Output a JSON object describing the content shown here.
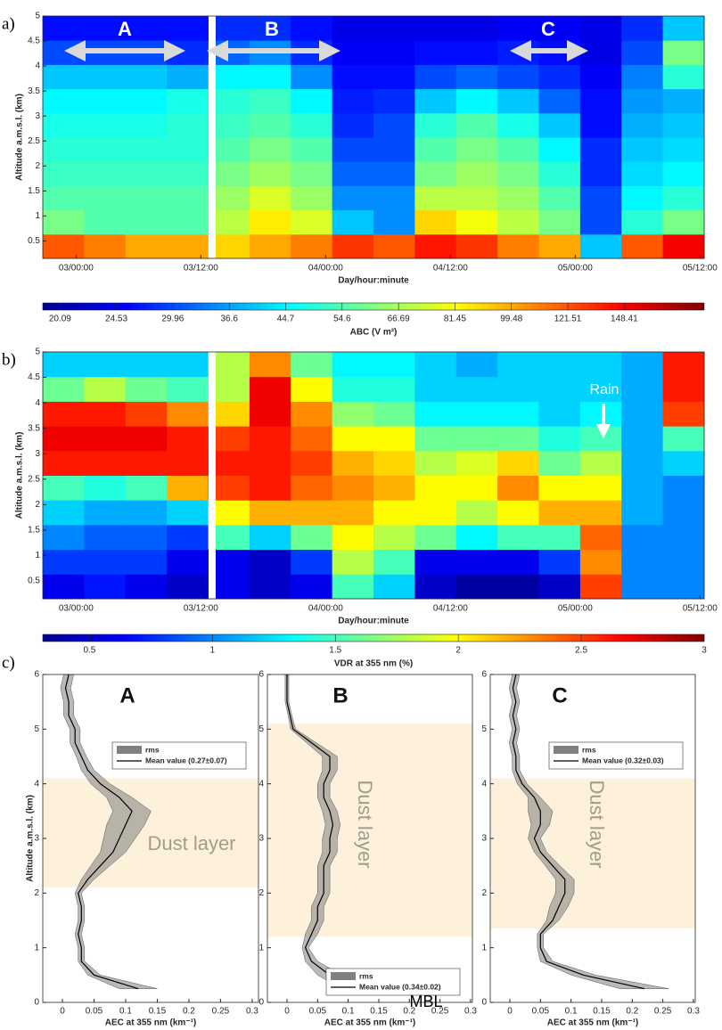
{
  "chart_data": [
    {
      "type": "heatmap",
      "panel_label": "a)",
      "xlabel": "Day/hour:minute",
      "ylabel": "Altitude a.m.s.l. (km)",
      "xlim": [
        -3.2,
        60.4
      ],
      "xticks": [
        {
          "value": 0,
          "label": "03/00:00"
        },
        {
          "value": 12,
          "label": "03/12:00"
        },
        {
          "value": 24,
          "label": "04/00:00"
        },
        {
          "value": 36,
          "label": "04/12:00"
        },
        {
          "value": 48,
          "label": "05/00:00"
        },
        {
          "value": 60,
          "label": "05/12:00"
        }
      ],
      "ylim": [
        0.15,
        5
      ],
      "yticks": [
        0.5,
        1,
        1.5,
        2,
        2.5,
        3,
        3.5,
        4,
        4.5,
        5
      ],
      "z": [
        [
          120,
          110,
          100,
          100,
          90,
          100,
          110,
          130,
          120,
          140,
          130,
          110,
          100,
          40,
          120,
          150
        ],
        [
          60,
          55,
          55,
          55,
          70,
          85,
          75,
          40,
          35,
          90,
          80,
          70,
          60,
          30,
          50,
          60
        ],
        [
          55,
          55,
          55,
          55,
          65,
          75,
          65,
          35,
          35,
          70,
          70,
          65,
          55,
          30,
          45,
          50
        ],
        [
          52,
          52,
          52,
          52,
          60,
          65,
          60,
          32,
          32,
          60,
          65,
          60,
          50,
          28,
          42,
          45
        ],
        [
          50,
          50,
          50,
          50,
          55,
          60,
          55,
          30,
          30,
          55,
          60,
          55,
          45,
          28,
          40,
          42
        ],
        [
          48,
          48,
          48,
          50,
          52,
          55,
          50,
          28,
          30,
          50,
          55,
          48,
          40,
          26,
          38,
          40
        ],
        [
          45,
          45,
          45,
          48,
          50,
          52,
          45,
          27,
          28,
          40,
          45,
          40,
          32,
          26,
          36,
          38
        ],
        [
          40,
          40,
          40,
          38,
          45,
          45,
          35,
          26,
          26,
          30,
          32,
          30,
          28,
          25,
          34,
          50
        ],
        [
          30,
          30,
          30,
          28,
          32,
          35,
          28,
          25,
          25,
          26,
          26,
          27,
          26,
          24,
          30,
          60
        ],
        [
          26,
          26,
          26,
          26,
          28,
          28,
          26,
          24,
          24,
          24,
          24,
          25,
          25,
          24,
          28,
          40
        ]
      ],
      "colorbar": {
        "label": "ABC (V m²)",
        "log": true,
        "clim": [
          18.9,
          197
        ],
        "ticks": [
          20.09,
          24.53,
          29.96,
          36.6,
          44.7,
          54.6,
          66.69,
          81.45,
          99.48,
          121.51,
          148.41
        ]
      },
      "annotations": [
        "A",
        "B",
        "C"
      ]
    },
    {
      "type": "heatmap",
      "panel_label": "b)",
      "xlabel": "Day/hour:minute",
      "ylabel": "Altitude a.m.s.l. (km)",
      "xlim": [
        -3.2,
        60.4
      ],
      "xticks": [
        {
          "value": 0,
          "label": "03/00:00"
        },
        {
          "value": 12,
          "label": "03/12:00"
        },
        {
          "value": 24,
          "label": "04/00:00"
        },
        {
          "value": 36,
          "label": "04/12:00"
        },
        {
          "value": 48,
          "label": "05/00:00"
        },
        {
          "value": 60,
          "label": "05/12:00"
        }
      ],
      "ylim": [
        0.15,
        5
      ],
      "yticks": [
        0.5,
        1,
        1.5,
        2,
        2.5,
        3,
        3.5,
        4,
        4.5,
        5
      ],
      "z": [
        [
          0.6,
          0.7,
          0.6,
          0.5,
          0.6,
          0.5,
          0.6,
          1.5,
          1.2,
          0.5,
          0.4,
          0.4,
          0.5,
          2.5,
          1.0,
          1.0
        ],
        [
          0.8,
          0.8,
          0.8,
          0.6,
          0.6,
          0.5,
          0.8,
          1.8,
          1.5,
          0.6,
          0.6,
          0.6,
          0.8,
          2.3,
          1.0,
          1.0
        ],
        [
          1.0,
          0.9,
          0.9,
          0.8,
          1.5,
          1.2,
          1.6,
          2.0,
          1.8,
          1.6,
          1.3,
          1.5,
          1.5,
          2.4,
          1.0,
          1.0
        ],
        [
          1.2,
          1.1,
          1.1,
          1.2,
          2.0,
          2.2,
          2.2,
          2.2,
          2.0,
          2.0,
          1.8,
          2.0,
          2.2,
          2.2,
          1.1,
          1.0
        ],
        [
          1.5,
          1.4,
          1.5,
          2.2,
          2.5,
          2.6,
          2.4,
          2.3,
          2.2,
          2.0,
          2.0,
          2.3,
          2.0,
          2.0,
          1.1,
          1.0
        ],
        [
          2.6,
          2.6,
          2.6,
          2.6,
          2.6,
          2.6,
          2.5,
          2.2,
          2.1,
          1.8,
          1.9,
          2.1,
          1.6,
          1.8,
          1.1,
          1.2
        ],
        [
          2.7,
          2.7,
          2.7,
          2.6,
          2.5,
          2.6,
          2.4,
          2.0,
          2.0,
          1.6,
          1.6,
          1.6,
          1.4,
          1.5,
          1.1,
          1.5
        ],
        [
          2.6,
          2.6,
          2.5,
          2.3,
          2.1,
          2.7,
          2.3,
          1.7,
          1.6,
          1.3,
          1.3,
          1.3,
          1.2,
          1.3,
          1.1,
          2.5
        ],
        [
          1.6,
          1.8,
          1.6,
          1.5,
          1.8,
          2.7,
          2.0,
          1.4,
          1.4,
          1.2,
          1.2,
          1.2,
          1.2,
          1.2,
          1.1,
          2.6
        ],
        [
          1.2,
          1.2,
          1.2,
          1.2,
          1.8,
          2.3,
          1.6,
          1.3,
          1.3,
          1.2,
          1.1,
          1.2,
          1.2,
          1.2,
          1.1,
          2.6
        ]
      ],
      "colorbar": {
        "label": "VDR at 355 nm (%)",
        "log": false,
        "clim": [
          0.31,
          3
        ],
        "ticks": [
          0.5,
          1,
          1.5,
          2,
          2.5,
          3
        ]
      },
      "annotations": [
        "Rain"
      ]
    },
    {
      "type": "profile",
      "panel_label": "c)",
      "title": "A",
      "xlabel": "AEC at 355 nm (km⁻¹)",
      "ylabel": "Altitude a.m.s.l. (km)",
      "xlim": [
        -0.031,
        0.31
      ],
      "xticks": [
        0,
        0.05,
        0.1,
        0.15,
        0.2,
        0.25,
        0.3
      ],
      "ylim": [
        0,
        6
      ],
      "yticks": [
        0,
        1,
        2,
        3,
        4,
        5,
        6
      ],
      "legend": "upper right",
      "y": [
        0.25,
        0.5,
        0.75,
        1,
        1.25,
        1.5,
        1.75,
        2,
        2.25,
        2.5,
        2.75,
        3,
        3.25,
        3.5,
        3.75,
        4,
        4.25,
        4.5,
        4.75,
        5,
        5.25,
        5.5,
        5.75,
        6
      ],
      "series": [
        {
          "name": "rms",
          "color": "#7f7f7f",
          "values": [
            0.03,
            0.01,
            0.005,
            0.005,
            0.005,
            0.005,
            0.005,
            0.005,
            0.01,
            0.015,
            0.02,
            0.025,
            0.03,
            0.03,
            0.02,
            0.015,
            0.01,
            0.008,
            0.008,
            0.008,
            0.008,
            0.008,
            0.008,
            0.008
          ]
        },
        {
          "name": "Mean value (0.27±0.07)",
          "color": "#000000",
          "values": [
            0.12,
            0.05,
            0.03,
            0.03,
            0.025,
            0.03,
            0.03,
            0.025,
            0.04,
            0.06,
            0.08,
            0.09,
            0.1,
            0.11,
            0.09,
            0.06,
            0.04,
            0.03,
            0.02,
            0.02,
            0.01,
            0.01,
            0.005,
            0.01
          ]
        }
      ],
      "shaded_band": {
        "label": "Dust layer",
        "range": [
          2.1,
          4.1
        ],
        "color": "#fdf1dc",
        "orientation": "horizontal"
      }
    },
    {
      "type": "profile",
      "title": "B",
      "xlabel": "AEC at 355 nm (km⁻¹)",
      "xlim": [
        -0.032,
        0.303
      ],
      "xticks": [
        0,
        0.05,
        0.1,
        0.15,
        0.2,
        0.25,
        0.3
      ],
      "ylim": [
        0,
        6
      ],
      "yticks": [
        0,
        1,
        2,
        3,
        4,
        5,
        6
      ],
      "legend": "lower right",
      "y": [
        0.25,
        0.5,
        0.75,
        1,
        1.25,
        1.5,
        1.75,
        2,
        2.25,
        2.5,
        2.75,
        3,
        3.25,
        3.5,
        3.75,
        4,
        4.25,
        4.5,
        4.75,
        5,
        5.25,
        5.5,
        5.75,
        6
      ],
      "series": [
        {
          "name": "rms",
          "color": "#7f7f7f",
          "values": [
            0.03,
            0.02,
            0.01,
            0.005,
            0.01,
            0.01,
            0.01,
            0.01,
            0.01,
            0.01,
            0.012,
            0.012,
            0.012,
            0.012,
            0.01,
            0.01,
            0.012,
            0.012,
            0.008,
            0.004,
            0.003,
            0.003,
            0.003,
            0.003
          ]
        },
        {
          "name": "Mean value (0.34±0.02)",
          "color": "#000000",
          "values": [
            0.12,
            0.07,
            0.04,
            0.03,
            0.04,
            0.05,
            0.05,
            0.06,
            0.06,
            0.06,
            0.07,
            0.07,
            0.075,
            0.07,
            0.06,
            0.06,
            0.07,
            0.07,
            0.04,
            0.01,
            0.005,
            0,
            0,
            0
          ]
        }
      ],
      "shaded_band": {
        "label": "Dust layer",
        "range": [
          1.2,
          5.1
        ],
        "color": "#fdf1dc",
        "orientation": "vertical"
      },
      "annotation": "MBL"
    },
    {
      "type": "profile",
      "title": "C",
      "xlabel": "AEC at 355 nm (km⁻¹)",
      "xlim": [
        -0.032,
        0.303
      ],
      "xticks": [
        0,
        0.05,
        0.1,
        0.15,
        0.2,
        0.25,
        0.3
      ],
      "ylim": [
        0,
        6
      ],
      "yticks": [
        0,
        1,
        2,
        3,
        4,
        5,
        6
      ],
      "legend": "upper right",
      "y": [
        0.25,
        0.5,
        0.75,
        1,
        1.25,
        1.5,
        1.75,
        2,
        2.25,
        2.5,
        2.75,
        3,
        3.25,
        3.5,
        3.75,
        4,
        4.25,
        4.5,
        4.75,
        5,
        5.25,
        5.5,
        5.75,
        6
      ],
      "series": [
        {
          "name": "rms",
          "color": "#7f7f7f",
          "values": [
            0.04,
            0.02,
            0.01,
            0.005,
            0.005,
            0.01,
            0.015,
            0.015,
            0.015,
            0.012,
            0.01,
            0.01,
            0.015,
            0.02,
            0.01,
            0.008,
            0.006,
            0.006,
            0.006,
            0.006,
            0.006,
            0.006,
            0.006,
            0.006
          ]
        },
        {
          "name": "Mean value (0.32±0.03)",
          "color": "#000000",
          "values": [
            0.22,
            0.12,
            0.06,
            0.05,
            0.05,
            0.07,
            0.08,
            0.09,
            0.09,
            0.07,
            0.05,
            0.04,
            0.05,
            0.05,
            0.04,
            0.02,
            0.01,
            0.01,
            0.005,
            0.01,
            0.005,
            0.01,
            0.005,
            0.01
          ]
        }
      ],
      "shaded_band": {
        "label": "Dust layer",
        "range": [
          1.35,
          4.1
        ],
        "color": "#fdf1dc",
        "orientation": "vertical"
      }
    }
  ]
}
